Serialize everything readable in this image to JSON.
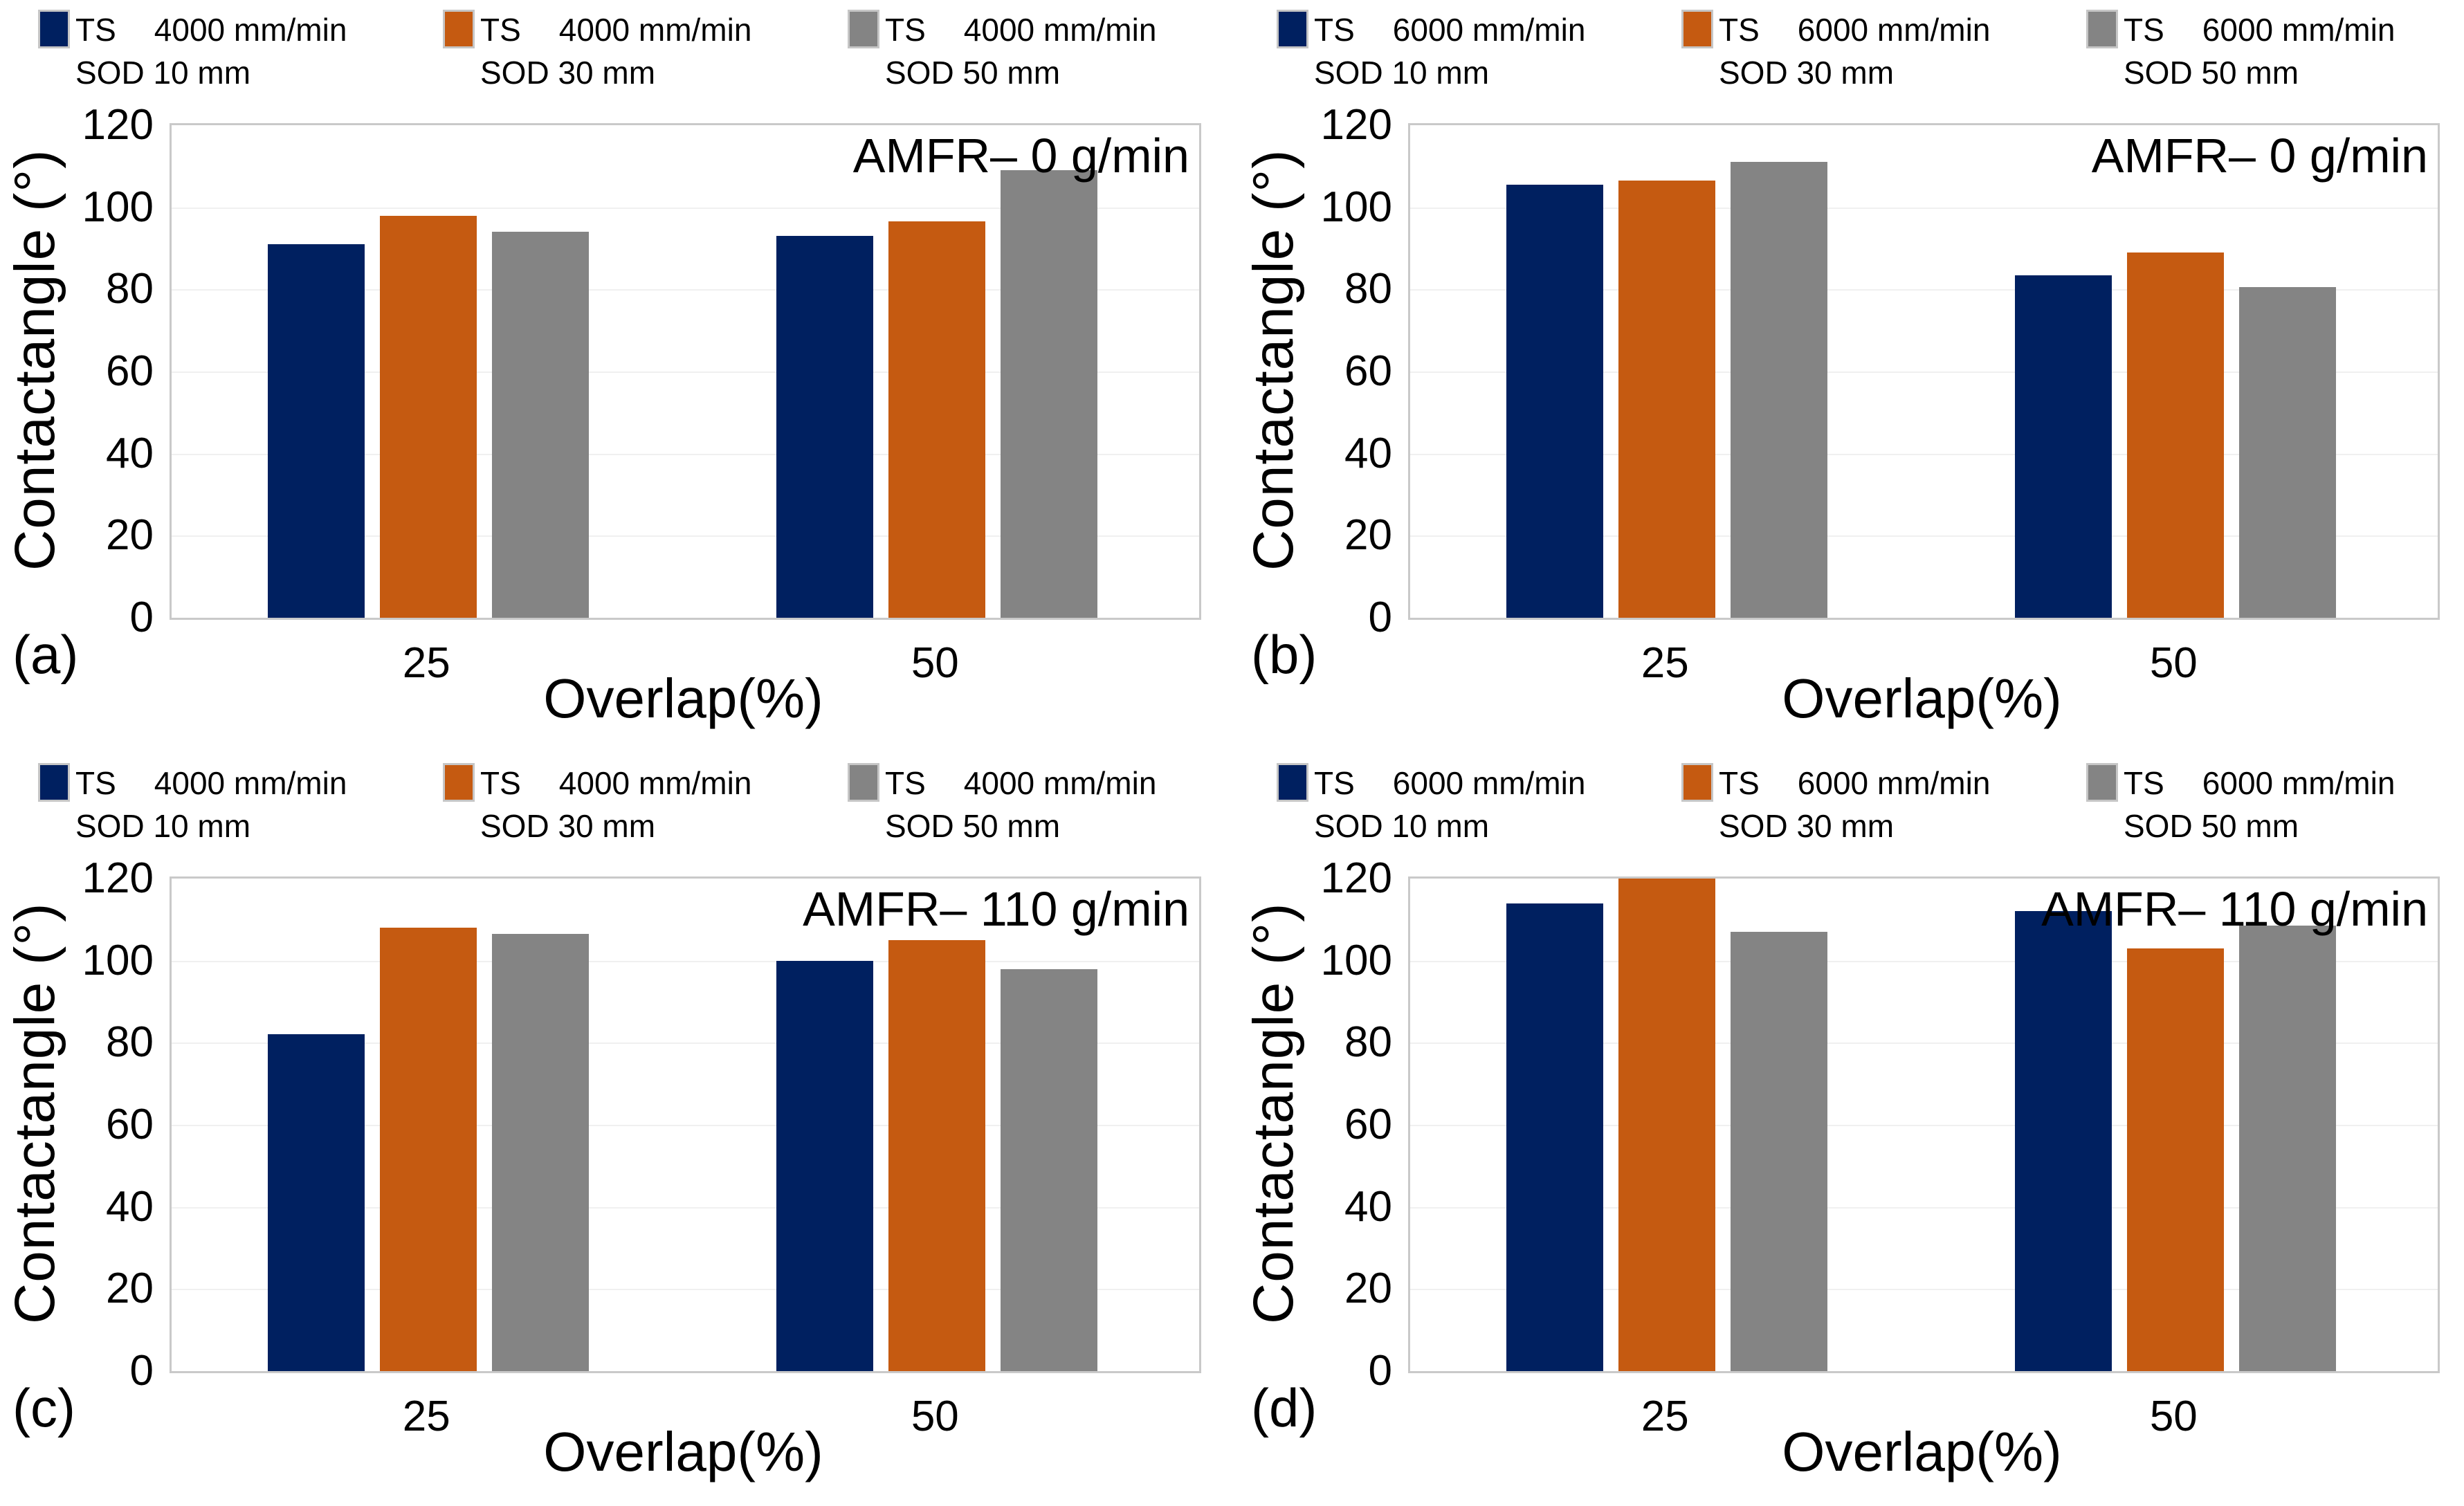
{
  "figure": {
    "xlabel": "Overlap(%)",
    "ylabel": "Contactangle (°)",
    "background": "#ffffff",
    "colors": {
      "series_navy": "#002060",
      "series_orange": "#c55a11",
      "series_gray": "#848484",
      "plot_border": "#c9c9c9",
      "gridline": "#f0f0f0",
      "text": "#000000"
    }
  },
  "chart_data": [
    {
      "type": "bar",
      "panel_label": "(a)",
      "annotation": "AMFR– 0 g/min",
      "xlabel": "Overlap(%)",
      "ylabel": "Contactangle (°)",
      "ylim": [
        0,
        120
      ],
      "yticks": [
        0,
        20,
        40,
        60,
        80,
        100,
        120
      ],
      "categories": [
        "25",
        "50"
      ],
      "grid": true,
      "legend_position": "top",
      "legend": [
        {
          "ts": "TS",
          "speed": "4000 mm/min",
          "sod": "SOD 10 mm",
          "color": "#002060"
        },
        {
          "ts": "TS",
          "speed": "4000 mm/min",
          "sod": "SOD 30 mm",
          "color": "#c55a11"
        },
        {
          "ts": "TS",
          "speed": "4000 mm/min",
          "sod": "SOD 50 mm",
          "color": "#848484"
        }
      ],
      "series": [
        {
          "name": "TS 4000 mm/min SOD 10 mm",
          "color": "#002060",
          "values": [
            91,
            93
          ]
        },
        {
          "name": "TS 4000 mm/min SOD 30 mm",
          "color": "#c55a11",
          "values": [
            98,
            96.5
          ]
        },
        {
          "name": "TS 4000 mm/min SOD 50 mm",
          "color": "#848484",
          "values": [
            94,
            109
          ]
        }
      ]
    },
    {
      "type": "bar",
      "panel_label": "(b)",
      "annotation": "AMFR– 0 g/min",
      "xlabel": "Overlap(%)",
      "ylabel": "Contactangle (°)",
      "ylim": [
        0,
        120
      ],
      "yticks": [
        0,
        20,
        40,
        60,
        80,
        100,
        120
      ],
      "categories": [
        "25",
        "50"
      ],
      "grid": true,
      "legend_position": "top",
      "legend": [
        {
          "ts": "TS",
          "speed": "6000 mm/min",
          "sod": "SOD 10 mm",
          "color": "#002060"
        },
        {
          "ts": "TS",
          "speed": "6000 mm/min",
          "sod": "SOD 30 mm",
          "color": "#c55a11"
        },
        {
          "ts": "TS",
          "speed": "6000 mm/min",
          "sod": "SOD 50 mm",
          "color": "#848484"
        }
      ],
      "series": [
        {
          "name": "TS 6000 mm/min SOD 10 mm",
          "color": "#002060",
          "values": [
            105.5,
            83.5
          ]
        },
        {
          "name": "TS 6000 mm/min SOD 30 mm",
          "color": "#c55a11",
          "values": [
            106.5,
            89
          ]
        },
        {
          "name": "TS 6000 mm/min SOD 50 mm",
          "color": "#848484",
          "values": [
            111,
            80.5
          ]
        }
      ]
    },
    {
      "type": "bar",
      "panel_label": "(c)",
      "annotation": "AMFR– 110 g/min",
      "xlabel": "Overlap(%)",
      "ylabel": "Contactangle (°)",
      "ylim": [
        0,
        120
      ],
      "yticks": [
        0,
        20,
        40,
        60,
        80,
        100,
        120
      ],
      "categories": [
        "25",
        "50"
      ],
      "grid": true,
      "legend_position": "top",
      "legend": [
        {
          "ts": "TS",
          "speed": "4000 mm/min",
          "sod": "SOD 10 mm",
          "color": "#002060"
        },
        {
          "ts": "TS",
          "speed": "4000 mm/min",
          "sod": "SOD 30 mm",
          "color": "#c55a11"
        },
        {
          "ts": "TS",
          "speed": "4000 mm/min",
          "sod": "SOD 50 mm",
          "color": "#848484"
        }
      ],
      "series": [
        {
          "name": "TS 4000 mm/min SOD 10 mm",
          "color": "#002060",
          "values": [
            82,
            100
          ]
        },
        {
          "name": "TS 4000 mm/min SOD 30 mm",
          "color": "#c55a11",
          "values": [
            108,
            105
          ]
        },
        {
          "name": "TS 4000 mm/min SOD 50 mm",
          "color": "#848484",
          "values": [
            106.5,
            98
          ]
        }
      ]
    },
    {
      "type": "bar",
      "panel_label": "(d)",
      "annotation": "AMFR– 110 g/min",
      "xlabel": "Overlap(%)",
      "ylabel": "Contactangle (°)",
      "ylim": [
        0,
        120
      ],
      "yticks": [
        0,
        20,
        40,
        60,
        80,
        100,
        120
      ],
      "categories": [
        "25",
        "50"
      ],
      "grid": true,
      "legend_position": "top",
      "legend": [
        {
          "ts": "TS",
          "speed": "6000 mm/min",
          "sod": "SOD 10 mm",
          "color": "#002060"
        },
        {
          "ts": "TS",
          "speed": "6000 mm/min",
          "sod": "SOD 30 mm",
          "color": "#c55a11"
        },
        {
          "ts": "TS",
          "speed": "6000 mm/min",
          "sod": "SOD 50 mm",
          "color": "#848484"
        }
      ],
      "series": [
        {
          "name": "TS 6000 mm/min SOD 10 mm",
          "color": "#002060",
          "values": [
            114,
            112
          ]
        },
        {
          "name": "TS 6000 mm/min SOD 30 mm",
          "color": "#c55a11",
          "values": [
            120,
            103
          ]
        },
        {
          "name": "TS 6000 mm/min SOD 50 mm",
          "color": "#848484",
          "values": [
            107,
            108.5
          ]
        }
      ]
    }
  ]
}
